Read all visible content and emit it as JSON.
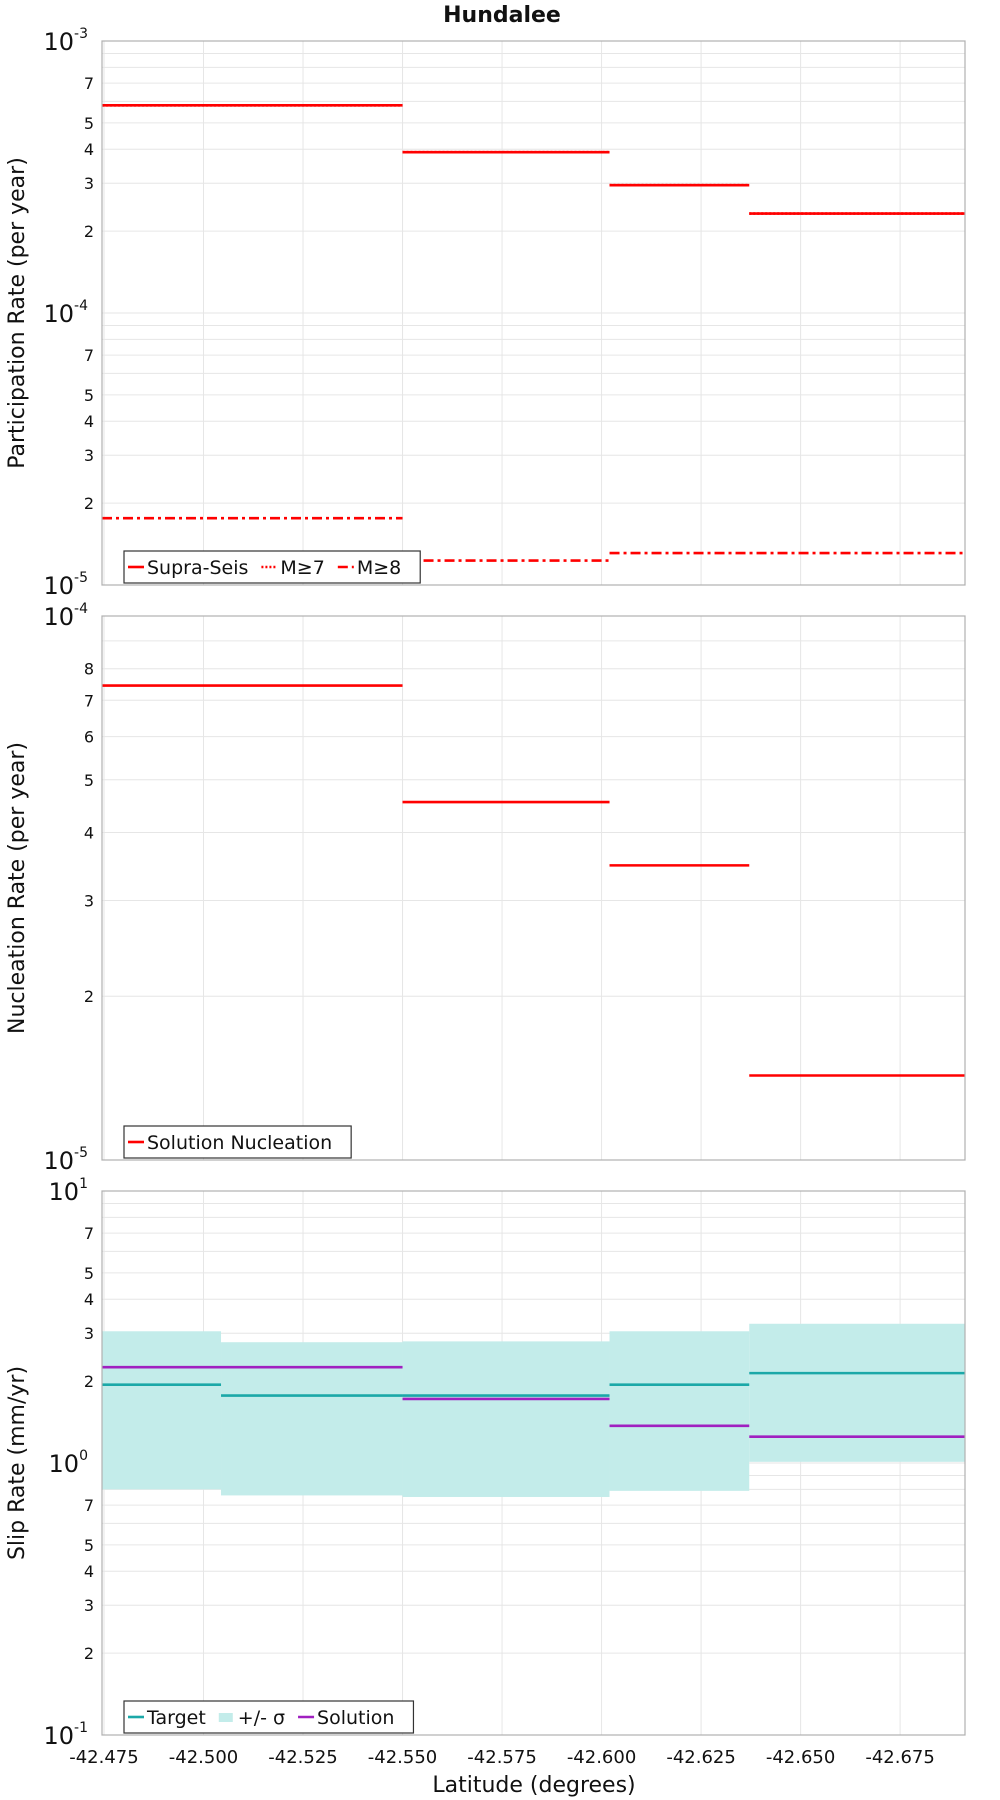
{
  "title": "Hundalee",
  "xlabel": "Latitude (degrees)",
  "x_ticks": [
    "-42.475",
    "-42.500",
    "-42.525",
    "-42.550",
    "-42.575",
    "-42.600",
    "-42.625",
    "-42.650",
    "-42.675"
  ],
  "chart_data": [
    {
      "type": "line",
      "name": "participation",
      "ylabel": "Participation Rate (per year)",
      "yscale": "log",
      "xlim": [
        -42.4745,
        -42.6913
      ],
      "ylim": [
        1e-05,
        0.001
      ],
      "y_minor_labels": [
        "2",
        "3",
        "4",
        "5",
        "7"
      ],
      "legend": {
        "location": "bottom-left",
        "entries": [
          "Supra-Seis",
          "M≥7",
          "M≥8"
        ]
      },
      "series": [
        {
          "name": "Supra-Seis",
          "color": "#ff0000",
          "style": "solid",
          "segments": [
            {
              "x": [
                -42.4745,
                -42.55
              ],
              "y": 0.00058
            },
            {
              "x": [
                -42.55,
                -42.602
              ],
              "y": 0.00039
            },
            {
              "x": [
                -42.602,
                -42.6371
              ],
              "y": 0.000295
            },
            {
              "x": [
                -42.6371,
                -42.6913
              ],
              "y": 0.000232
            }
          ]
        },
        {
          "name": "M≥7",
          "color": "#ff0000",
          "style": "dotted",
          "segments": [
            {
              "x": [
                -42.4745,
                -42.55
              ],
              "y": 0.00058
            },
            {
              "x": [
                -42.55,
                -42.602
              ],
              "y": 0.00039
            },
            {
              "x": [
                -42.602,
                -42.6371
              ],
              "y": 0.000295
            },
            {
              "x": [
                -42.6371,
                -42.6913
              ],
              "y": 0.000232
            }
          ]
        },
        {
          "name": "M≥8",
          "color": "#ff0000",
          "style": "dashdot",
          "segments": [
            {
              "x": [
                -42.4745,
                -42.55
              ],
              "y": 1.76e-05
            },
            {
              "x": [
                -42.55,
                -42.602
              ],
              "y": 1.23e-05
            },
            {
              "x": [
                -42.602,
                -42.6913
              ],
              "y": 1.31e-05
            }
          ]
        }
      ]
    },
    {
      "type": "line",
      "name": "nucleation",
      "ylabel": "Nucleation Rate (per year)",
      "yscale": "log",
      "xlim": [
        -42.4745,
        -42.6913
      ],
      "ylim": [
        1e-05,
        0.0001
      ],
      "y_minor_labels": [
        "2",
        "3",
        "4",
        "5",
        "6",
        "7",
        "8"
      ],
      "legend": {
        "location": "bottom-left",
        "entries": [
          "Solution Nucleation"
        ]
      },
      "series": [
        {
          "name": "Solution Nucleation",
          "color": "#ff0000",
          "style": "solid",
          "segments": [
            {
              "x": [
                -42.4745,
                -42.55
              ],
              "y": 7.45e-05
            },
            {
              "x": [
                -42.55,
                -42.602
              ],
              "y": 4.55e-05
            },
            {
              "x": [
                -42.602,
                -42.6371
              ],
              "y": 3.48e-05
            },
            {
              "x": [
                -42.6371,
                -42.6913
              ],
              "y": 1.43e-05
            }
          ]
        }
      ]
    },
    {
      "type": "line",
      "name": "slip",
      "ylabel": "Slip Rate (mm/yr)",
      "yscale": "log",
      "xlim": [
        -42.4745,
        -42.6913
      ],
      "ylim": [
        0.1,
        10
      ],
      "y_minor_labels": [
        "2",
        "3",
        "4",
        "5",
        "7",
        "2",
        "3",
        "4",
        "5",
        "7"
      ],
      "legend": {
        "location": "bottom-left",
        "entries": [
          "Target",
          "+/- σ",
          "Solution"
        ]
      },
      "band": {
        "name": "+/- σ",
        "color": "#c3ecea",
        "segments": [
          {
            "x": [
              -42.4745,
              -42.5044
            ],
            "low": 0.8,
            "high": 3.05
          },
          {
            "x": [
              -42.5044,
              -42.55
            ],
            "low": 0.76,
            "high": 2.78
          },
          {
            "x": [
              -42.55,
              -42.602
            ],
            "low": 0.75,
            "high": 2.8
          },
          {
            "x": [
              -42.602,
              -42.6371
            ],
            "low": 0.79,
            "high": 3.05
          },
          {
            "x": [
              -42.6371,
              -42.6913
            ],
            "low": 1.01,
            "high": 3.25
          }
        ]
      },
      "series": [
        {
          "name": "Target",
          "color": "#1ba8a8",
          "style": "solid",
          "segments": [
            {
              "x": [
                -42.4745,
                -42.5044
              ],
              "y": 1.94
            },
            {
              "x": [
                -42.5044,
                -42.55
              ],
              "y": 1.77
            },
            {
              "x": [
                -42.55,
                -42.602
              ],
              "y": 1.77
            },
            {
              "x": [
                -42.602,
                -42.6371
              ],
              "y": 1.94
            },
            {
              "x": [
                -42.6371,
                -42.6913
              ],
              "y": 2.14
            }
          ]
        },
        {
          "name": "Solution",
          "color": "#a020c0",
          "style": "solid",
          "segments": [
            {
              "x": [
                -42.4745,
                -42.55
              ],
              "y": 2.25
            },
            {
              "x": [
                -42.55,
                -42.602
              ],
              "y": 1.72
            },
            {
              "x": [
                -42.602,
                -42.6371
              ],
              "y": 1.37
            },
            {
              "x": [
                -42.6371,
                -42.6913
              ],
              "y": 1.25
            }
          ]
        }
      ]
    }
  ]
}
